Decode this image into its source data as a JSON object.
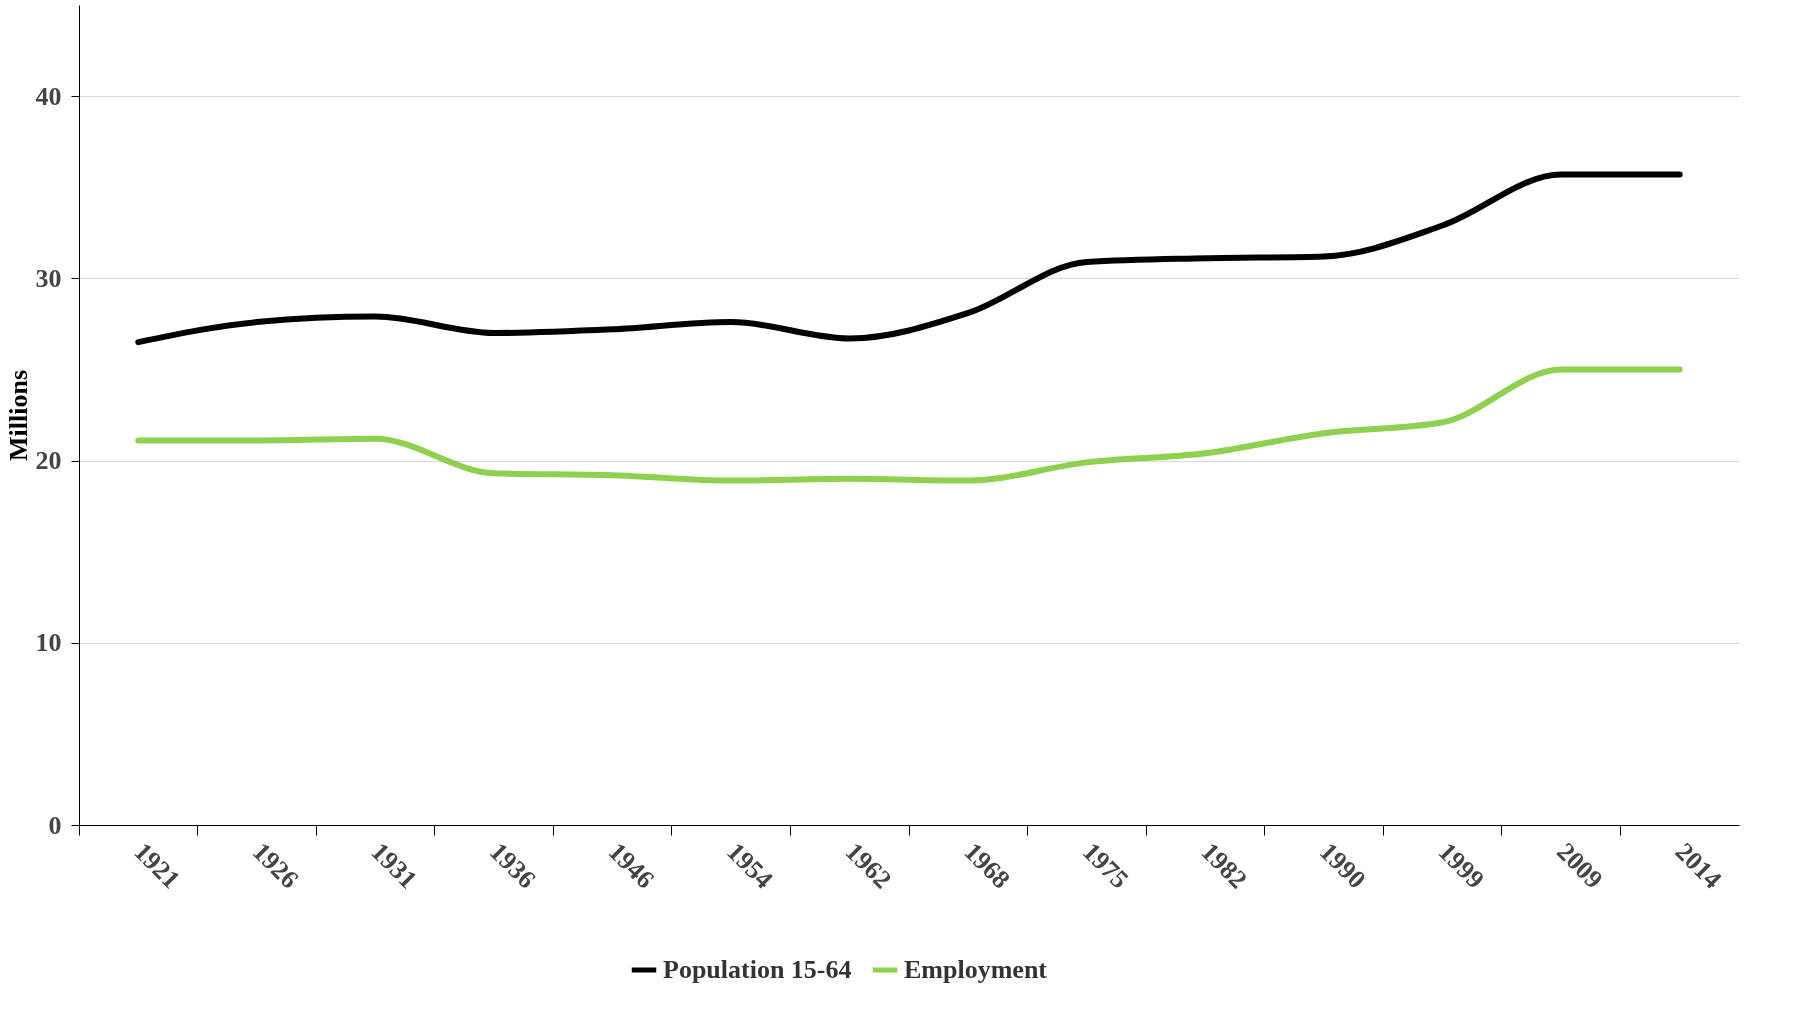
{
  "chart_data": {
    "type": "line",
    "ylabel": "Millions",
    "categories": [
      "1921",
      "1926",
      "1931",
      "1936",
      "1946",
      "1954",
      "1962",
      "1968",
      "1975",
      "1982",
      "1990",
      "1999",
      "2009",
      "2014"
    ],
    "series": [
      {
        "name": "Population 15-64",
        "color": "#000000",
        "values": [
          26.5,
          27.6,
          27.9,
          27.0,
          27.2,
          27.6,
          26.7,
          28.1,
          30.9,
          31.1,
          31.2,
          32.9,
          35.7,
          35.7
        ]
      },
      {
        "name": "Employment",
        "color": "#8fd14f",
        "values": [
          21.1,
          21.1,
          21.2,
          19.3,
          19.2,
          18.9,
          19.0,
          18.9,
          19.9,
          20.4,
          21.5,
          22.1,
          25.0,
          25.0
        ]
      }
    ],
    "ylim": [
      0,
      45
    ],
    "yticks": [
      0,
      10,
      20,
      30,
      40
    ],
    "grid": "y",
    "legend": "bottom",
    "marker": "none",
    "line_style": "solid"
  }
}
